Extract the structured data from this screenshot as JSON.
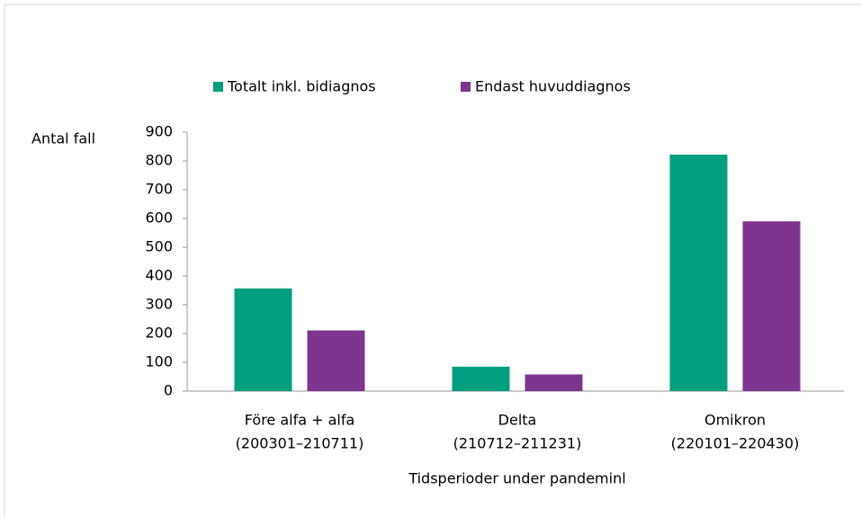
{
  "chart_data": {
    "type": "bar",
    "y_axis_label": "Antal fall",
    "x_axis_label": "Tidsperioder under pandeminl",
    "categories": [
      [
        "Före alfa + alfa",
        "(200301–210711)"
      ],
      [
        "Delta",
        "(210712–211231)"
      ],
      [
        "Omikron",
        "(220101–220430)"
      ]
    ],
    "series": [
      {
        "name": "Totalt inkl. bidiagnos",
        "color": "#00a07f",
        "values": [
          357,
          85,
          822
        ]
      },
      {
        "name": "Endast huvuddiagnos",
        "color": "#7e3590",
        "values": [
          211,
          58,
          590
        ]
      }
    ],
    "ylim": [
      0,
      900
    ],
    "yticks": [
      0,
      100,
      200,
      300,
      400,
      500,
      600,
      700,
      800,
      900
    ],
    "grid": false,
    "legend": "top"
  }
}
